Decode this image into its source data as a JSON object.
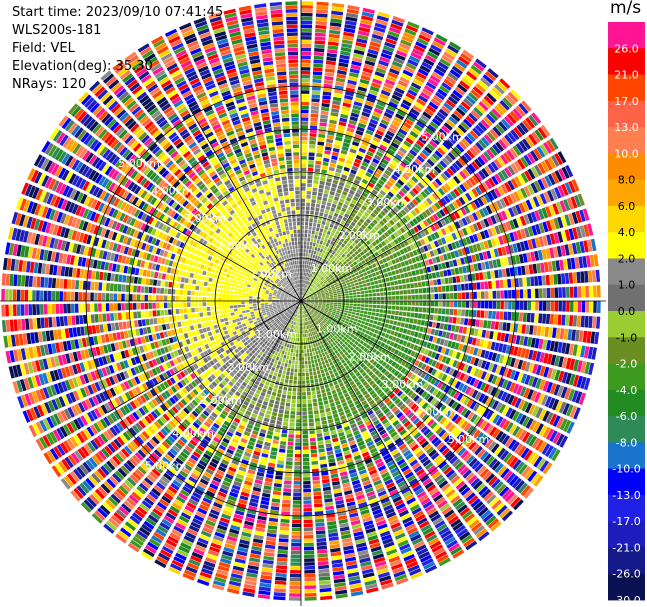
{
  "info": {
    "start_time": "Start time: 2023/09/10 07:41:45",
    "instrument": "WLS200s-181",
    "field": "Field: VEL",
    "elevation": "Elevation(deg): 35.30",
    "nrays": "NRays: 120"
  },
  "chart_data": {
    "type": "heatmap",
    "projection": "polar PPI",
    "range_rings_km": [
      1,
      2,
      3,
      4,
      5
    ],
    "ring_labels": [
      "1.00km",
      "2.00km",
      "3.00km",
      "4.00km",
      "5.00km"
    ],
    "n_rays": 120,
    "colorbar": {
      "unit": "m/s",
      "levels": [
        -30,
        -26,
        -21,
        -17,
        -13,
        -10,
        -8,
        -6,
        -4,
        -2,
        -1,
        0,
        1,
        2,
        4,
        6,
        8,
        10,
        13,
        17,
        21,
        26,
        30
      ],
      "tick_labels": [
        "26.0",
        "21.0",
        "17.0",
        "13.0",
        "10.0",
        "8.0",
        "6.0",
        "4.0",
        "2.0",
        "1.0",
        "0.0",
        "-1.0",
        "-2.0",
        "-4.0",
        "-6.0",
        "-8.0",
        "-10.0",
        "-13.0",
        "-17.0",
        "-21.0",
        "-26.0",
        "-30.0"
      ],
      "colors": [
        "#0a1152",
        "#141a8a",
        "#1d1dbe",
        "#2121e6",
        "#0000ff",
        "#1874cd",
        "#2e8b57",
        "#228b22",
        "#3d9a1f",
        "#6b8e23",
        "#9acd32",
        "#707070",
        "#8a8a8a",
        "#ffff00",
        "#ffd700",
        "#ffa500",
        "#ff8c00",
        "#ff7f50",
        "#ff6347",
        "#ff4500",
        "#ff0000",
        "#ff1493"
      ]
    }
  }
}
